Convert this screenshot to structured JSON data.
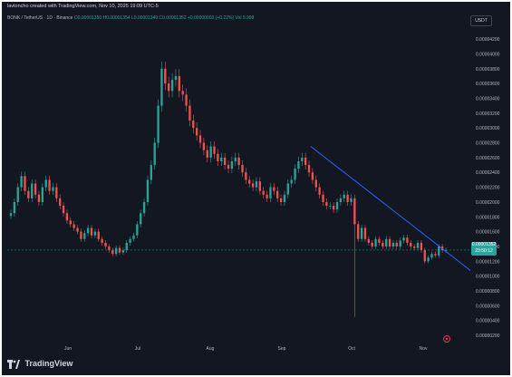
{
  "header": {
    "caption": "lavtoncho created with TradingView.com, Nov 10, 2025 19:09 UTC-5"
  },
  "symbol_bar": {
    "symbol": "BONK / TetherUS · 1D · Binance",
    "ohlc": "O0.00001350 H0.00001354 L0.00001349 C0.00001352 +0.00000003 (+0.22%) Vol 9.998"
  },
  "currency_badge": "USDT",
  "price_badge": {
    "price": "0.00001352",
    "countdown": "23:50:12"
  },
  "footer": {
    "brand": "TradingView"
  },
  "icons": {
    "logo": "tradingview-logo-icon",
    "settings": "gear-icon"
  },
  "colors": {
    "up": "#26a69a",
    "down": "#ef5350",
    "trendline": "#2962ff",
    "background": "#131722"
  },
  "chart_data": {
    "type": "candlestick",
    "x_ticks": [
      "Jun",
      "Jul",
      "Aug",
      "Sep",
      "Oct",
      "Nov"
    ],
    "y_ticks": [
      "0.00004200",
      "0.00004000",
      "0.00003800",
      "0.00003600",
      "0.00003400",
      "0.00003200",
      "0.00003000",
      "0.00002800",
      "0.00002600",
      "0.00002400",
      "0.00002200",
      "0.00002000",
      "0.00001800",
      "0.00001600",
      "0.00001400",
      "0.00001200",
      "0.00001000",
      "0.00000800",
      "0.00000600",
      "0.00000400",
      "0.00000200"
    ],
    "ylim": [
      1.4e-06,
      4.36e-05
    ],
    "closes": [
      1.85e-05,
      2e-05,
      2.2e-05,
      2.35e-05,
      2.15e-05,
      2.05e-05,
      2.25e-05,
      2.1e-05,
      2e-05,
      2.2e-05,
      2.3e-05,
      2.15e-05,
      2.2e-05,
      2.05e-05,
      1.95e-05,
      1.85e-05,
      1.75e-05,
      1.7e-05,
      1.65e-05,
      1.6e-05,
      1.5e-05,
      1.58e-05,
      1.65e-05,
      1.55e-05,
      1.6e-05,
      1.5e-05,
      1.45e-05,
      1.4e-05,
      1.35e-05,
      1.3e-05,
      1.38e-05,
      1.32e-05,
      1.35e-05,
      1.45e-05,
      1.5e-05,
      1.55e-05,
      1.7e-05,
      1.85e-05,
      2e-05,
      2.3e-05,
      2.5e-05,
      2.8e-05,
      3.3e-05,
      3.8e-05,
      3.6e-05,
      3.5e-05,
      3.65e-05,
      3.7e-05,
      3.5e-05,
      3.45e-05,
      3.3e-05,
      3.1e-05,
      3e-05,
      2.9e-05,
      2.8e-05,
      2.7e-05,
      2.6e-05,
      2.75e-05,
      2.65e-05,
      2.55e-05,
      2.6e-05,
      2.5e-05,
      2.45e-05,
      2.55e-05,
      2.6e-05,
      2.5e-05,
      2.4e-05,
      2.3e-05,
      2.25e-05,
      2.2e-05,
      2.28e-05,
      2.15e-05,
      2.1e-05,
      2.05e-05,
      2.2e-05,
      2.15e-05,
      2.05e-05,
      2e-05,
      2.1e-05,
      2.25e-05,
      2.3e-05,
      2.45e-05,
      2.55e-05,
      2.6e-05,
      2.5e-05,
      2.4e-05,
      2.3e-05,
      2.2e-05,
      2.1e-05,
      2e-05,
      1.95e-05,
      1.95e-05,
      1.9e-05,
      2e-05,
      2.05e-05,
      2.1e-05,
      2e-05,
      2.05e-05,
      1.7e-05,
      1.5e-05,
      1.65e-05,
      1.5e-05,
      1.45e-05,
      1.4e-05,
      1.5e-05,
      1.45e-05,
      1.4e-05,
      1.5e-05,
      1.4e-05,
      1.45e-05,
      1.4e-05,
      1.48e-05,
      1.52e-05,
      1.45e-05,
      1.4e-05,
      1.38e-05,
      1.45e-05,
      1.35e-05,
      1.2e-05,
      1.25e-05,
      1.3e-05,
      1.28e-05,
      1.4e-05,
      1.35e-05,
      1.35e-05
    ],
    "notable_low": 4.5e-06,
    "last_price": 1.352e-05,
    "trendline": {
      "from": [
        "Sep",
        2.75e-05
      ],
      "to": [
        "Nov",
        1.15e-05
      ]
    }
  }
}
